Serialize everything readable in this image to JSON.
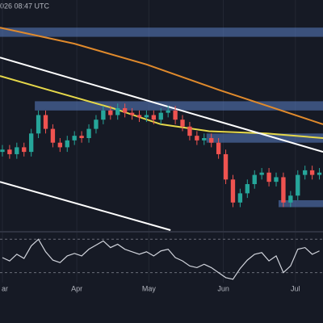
{
  "chart_data": {
    "type": "candlestick",
    "timestamp": "026 08:47 UTC",
    "x": [
      0,
      3,
      6,
      9,
      12,
      15,
      18,
      21,
      24,
      27,
      30,
      33,
      36,
      39,
      42,
      45,
      48,
      51,
      54,
      57,
      60,
      63,
      66,
      69,
      72,
      75,
      78,
      81,
      84,
      87,
      90,
      93,
      96,
      99,
      102,
      105,
      108,
      111,
      114,
      117,
      120,
      123,
      126,
      129,
      132
    ],
    "open": [
      34,
      35,
      33,
      36,
      34,
      42,
      50,
      44,
      38,
      36,
      39,
      41,
      40,
      44,
      48,
      52,
      50,
      53,
      51,
      50,
      49,
      50,
      48,
      51,
      52,
      48,
      45,
      41,
      39,
      40,
      38,
      33,
      22,
      12,
      16,
      20,
      24,
      25,
      21,
      23,
      12,
      15,
      24,
      26,
      24
    ],
    "high": [
      37,
      37,
      38,
      38,
      44,
      52,
      52,
      46,
      40,
      41,
      43,
      43,
      46,
      50,
      54,
      54,
      55,
      55,
      53,
      52,
      52,
      52,
      53,
      54,
      54,
      50,
      47,
      43,
      42,
      42,
      40,
      35,
      24,
      18,
      22,
      26,
      27,
      27,
      25,
      25,
      17,
      26,
      28,
      28,
      27
    ],
    "low": [
      32,
      31,
      31,
      32,
      32,
      40,
      42,
      36,
      34,
      34,
      37,
      38,
      38,
      42,
      46,
      48,
      48,
      49,
      48,
      47,
      47,
      46,
      46,
      49,
      46,
      43,
      39,
      37,
      37,
      36,
      31,
      20,
      10,
      10,
      14,
      18,
      22,
      19,
      19,
      10,
      10,
      13,
      22,
      22,
      22
    ],
    "close": [
      35,
      33,
      36,
      34,
      42,
      50,
      44,
      38,
      36,
      39,
      41,
      40,
      44,
      48,
      52,
      50,
      53,
      51,
      50,
      49,
      50,
      48,
      51,
      52,
      48,
      45,
      41,
      39,
      40,
      38,
      33,
      22,
      12,
      16,
      20,
      24,
      25,
      21,
      23,
      12,
      15,
      24,
      26,
      24,
      25
    ],
    "up_color": "#26a69a",
    "down_color": "#ef5350",
    "xlim": [
      -1,
      133.5
    ],
    "ylim": [
      0,
      100
    ],
    "grid": true,
    "xticks": [
      {
        "value": 0,
        "label": "ar"
      },
      {
        "value": 31,
        "label": "Apr"
      },
      {
        "value": 61,
        "label": "May"
      },
      {
        "value": 92,
        "label": "Jun"
      },
      {
        "value": 122,
        "label": "Jul"
      }
    ],
    "zones": [
      {
        "range": [
          84,
          88
        ],
        "start": -1,
        "color": "#5b7fc4"
      },
      {
        "range": [
          52,
          56
        ],
        "start": 13.5,
        "color": "#5b7fc4"
      },
      {
        "range": [
          38,
          42
        ],
        "start": 85,
        "color": "#5b7fc4"
      },
      {
        "range": [
          10,
          13
        ],
        "start": 115,
        "color": "#5b7fc4"
      }
    ],
    "lines": [
      {
        "color": "#e08a2c",
        "x": [
          -1,
          30,
          60,
          90,
          133.5
        ],
        "values": [
          88,
          81,
          72,
          61,
          46
        ]
      },
      {
        "color": "#e6d84a",
        "x": [
          -1,
          19,
          46,
          66,
          86,
          110,
          133.5
        ],
        "values": [
          67,
          61,
          53,
          46,
          43,
          42,
          40
        ]
      },
      {
        "color": "#ffffff",
        "x": [
          -1,
          133.5
        ],
        "values": [
          75,
          34
        ]
      },
      {
        "color": "#ffffff",
        "x": [
          -1,
          70
        ],
        "values": [
          21,
          0
        ]
      }
    ],
    "indicator": {
      "type": "line",
      "color": "#d1d4dc",
      "values": [
        48,
        44,
        52,
        47,
        62,
        70,
        55,
        45,
        42,
        50,
        53,
        50,
        58,
        63,
        68,
        60,
        64,
        58,
        55,
        52,
        55,
        50,
        56,
        58,
        48,
        44,
        38,
        36,
        40,
        36,
        30,
        24,
        22,
        35,
        45,
        52,
        54,
        44,
        50,
        30,
        38,
        58,
        60,
        52,
        56
      ],
      "ylim": [
        18,
        78
      ],
      "levels": [
        30,
        70
      ]
    }
  }
}
